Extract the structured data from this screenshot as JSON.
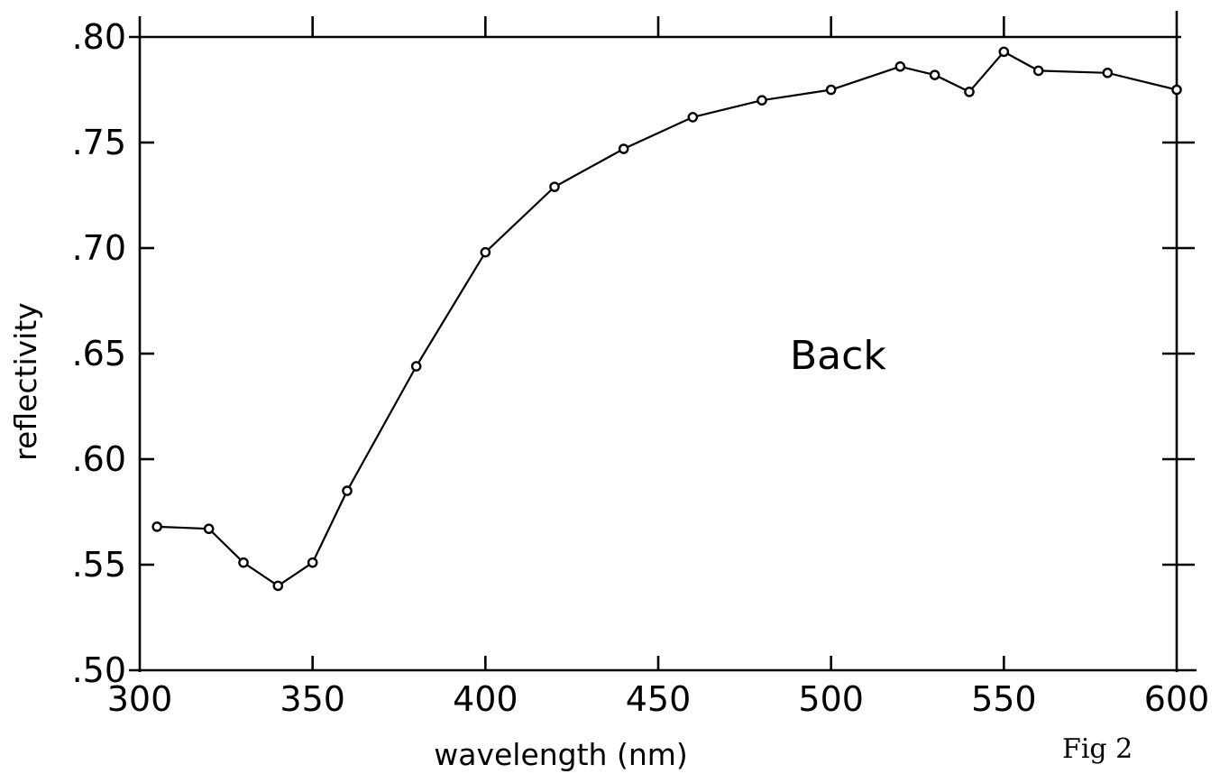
{
  "chart_data": {
    "type": "line",
    "title": "",
    "xlabel": "wavelength (nm)",
    "ylabel": "reflectivity",
    "xlim": [
      300,
      600
    ],
    "ylim": [
      0.5,
      0.8
    ],
    "x_ticks": [
      300,
      350,
      400,
      450,
      500,
      550,
      600
    ],
    "x_tick_labels": [
      "300",
      "350",
      "400",
      "450",
      "500",
      "550",
      "600"
    ],
    "y_ticks": [
      0.5,
      0.55,
      0.6,
      0.65,
      0.7,
      0.75,
      0.8
    ],
    "y_tick_labels": [
      ".50",
      ".55",
      ".60",
      ".65",
      ".70",
      ".75",
      ".80"
    ],
    "grid": false,
    "marker": "open-circle",
    "annotation": "Back",
    "figure_label": "Fig 2",
    "series": [
      {
        "x": [
          305,
          320,
          330,
          340,
          350,
          360,
          380,
          400,
          420,
          440,
          460,
          480,
          500,
          520,
          530,
          540,
          550,
          560,
          580,
          600
        ],
        "y": [
          0.568,
          0.567,
          0.551,
          0.54,
          0.551,
          0.585,
          0.644,
          0.698,
          0.729,
          0.747,
          0.762,
          0.77,
          0.775,
          0.786,
          0.782,
          0.774,
          0.793,
          0.784,
          0.783,
          0.775
        ]
      }
    ]
  }
}
